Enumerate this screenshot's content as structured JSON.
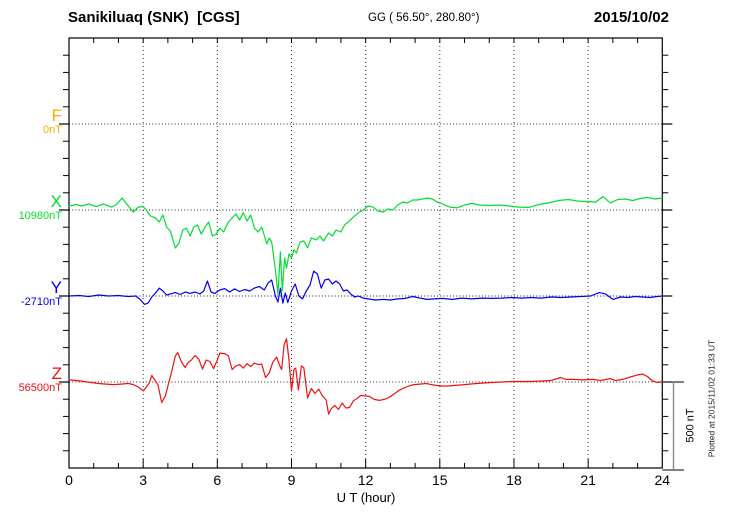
{
  "header": {
    "station": "Sanikiluaq (SNK)  [CGS]",
    "coords": "GG ( 56.50°, 280.80°)",
    "date": "2015/10/02"
  },
  "channels": [
    {
      "label": "F",
      "base_label": "0nT",
      "color": "#ffaa00"
    },
    {
      "label": "X",
      "base_label": "10980nT",
      "color": "#00dd33"
    },
    {
      "label": "Y",
      "base_label": "-2710nT",
      "color": "#0000ee"
    },
    {
      "label": "Z",
      "base_label": "56500nT",
      "color": "#ee1111"
    }
  ],
  "xaxis": {
    "label": "U T (hour)",
    "ticks": [
      0,
      3,
      6,
      9,
      12,
      15,
      18,
      21,
      24
    ]
  },
  "scale_bar": {
    "label": "500 nT"
  },
  "footer_note": "Plotted at 2015/11/02 01:33 UT",
  "chart_data": {
    "type": "line",
    "title": "Sanikiluaq (SNK) [CGS] magnetogram 2015/10/02",
    "xlabel": "U T (hour)",
    "xlim": [
      0,
      24
    ],
    "x_gridlines_every_hours": 3,
    "amplitude_scale": "500 nT per channel division",
    "grid": "dotted",
    "series": [
      {
        "name": "F",
        "base_nT": 0,
        "color": "#ffaa00",
        "note": "no data plotted - dotted baseline only",
        "hours": [],
        "values_nT": []
      },
      {
        "name": "X",
        "base_nT": 10980,
        "color": "#00dd33",
        "hours": [
          0,
          0.3,
          0.5,
          0.8,
          1.1,
          1.4,
          1.7,
          1.9,
          2.15,
          2.4,
          2.6,
          2.8,
          3.0,
          3.15,
          3.3,
          3.5,
          3.65,
          3.8,
          3.95,
          4.1,
          4.3,
          4.45,
          4.6,
          4.75,
          4.9,
          5.05,
          5.2,
          5.35,
          5.5,
          5.65,
          5.8,
          5.95,
          6.1,
          6.25,
          6.45,
          6.6,
          6.75,
          6.9,
          7.05,
          7.2,
          7.35,
          7.5,
          7.65,
          7.8,
          8.0,
          8.1,
          8.2,
          8.35,
          8.45,
          8.55,
          8.63,
          8.72,
          8.8,
          8.9,
          9.0,
          9.1,
          9.2,
          9.35,
          9.5,
          9.65,
          9.8,
          10.0,
          10.15,
          10.3,
          10.5,
          10.65,
          10.8,
          11.0,
          11.15,
          11.3,
          11.5,
          11.7,
          11.9,
          12.1,
          12.3,
          12.5,
          12.7,
          12.9,
          13.1,
          13.3,
          13.5,
          13.7,
          13.9,
          14.1,
          14.3,
          14.5,
          14.7,
          14.9,
          15.1,
          15.4,
          15.7,
          16.0,
          16.3,
          16.6,
          17.0,
          17.4,
          17.8,
          18.2,
          18.6,
          19.0,
          19.4,
          19.8,
          20.2,
          20.6,
          21.0,
          21.3,
          21.6,
          21.9,
          22.2,
          22.5,
          22.8,
          23.1,
          23.4,
          23.7,
          24.0
        ],
        "values_nT": [
          11003,
          11012,
          11003,
          11015,
          11000,
          11015,
          10997,
          11009,
          11050,
          11003,
          10968,
          10997,
          11000,
          10974,
          10945,
          10934,
          10910,
          10951,
          10881,
          10858,
          10759,
          10788,
          10864,
          10875,
          10829,
          10881,
          10893,
          10840,
          10881,
          10910,
          10829,
          10840,
          10875,
          10852,
          10910,
          10934,
          10957,
          10922,
          10965,
          10916,
          10951,
          10875,
          10852,
          10881,
          10783,
          10817,
          10794,
          10632,
          10493,
          10736,
          10510,
          10702,
          10643,
          10725,
          10702,
          10748,
          10730,
          10794,
          10800,
          10760,
          10818,
          10806,
          10829,
          10800,
          10847,
          10829,
          10864,
          10852,
          10893,
          10910,
          10939,
          10963,
          10980,
          11003,
          10997,
          10974,
          10968,
          10986,
          10980,
          11009,
          11026,
          11021,
          11038,
          11038,
          11044,
          11050,
          11044,
          11026,
          11015,
          10997,
          10992,
          11009,
          11018,
          11009,
          11006,
          11009,
          11003,
          10997,
          10995,
          11012,
          11021,
          11035,
          11041,
          11032,
          11029,
          11026,
          11058,
          11021,
          11041,
          11044,
          11035,
          11047,
          11053,
          11044,
          11050
        ]
      },
      {
        "name": "Y",
        "base_nT": -2710,
        "color": "#0000ee",
        "hours": [
          0,
          0.4,
          0.8,
          1.2,
          1.6,
          2.0,
          2.4,
          2.7,
          2.9,
          3.05,
          3.2,
          3.35,
          3.5,
          3.65,
          3.8,
          3.95,
          4.1,
          4.3,
          4.5,
          4.7,
          4.9,
          5.1,
          5.3,
          5.45,
          5.6,
          5.75,
          5.9,
          6.1,
          6.3,
          6.5,
          6.7,
          6.9,
          7.1,
          7.3,
          7.5,
          7.7,
          7.9,
          8.05,
          8.2,
          8.35,
          8.45,
          8.55,
          8.65,
          8.75,
          8.85,
          9.0,
          9.15,
          9.3,
          9.45,
          9.6,
          9.75,
          9.9,
          10.05,
          10.2,
          10.35,
          10.5,
          10.65,
          10.8,
          10.95,
          11.1,
          11.25,
          11.4,
          11.55,
          11.7,
          11.9,
          12.1,
          12.4,
          12.7,
          13.0,
          13.3,
          13.6,
          13.9,
          14.2,
          14.5,
          14.8,
          15.1,
          15.5,
          15.9,
          16.3,
          16.7,
          17.1,
          17.5,
          17.9,
          18.3,
          18.7,
          19.1,
          19.5,
          19.9,
          20.3,
          20.7,
          21.1,
          21.45,
          21.7,
          22.0,
          22.3,
          22.6,
          22.9,
          23.2,
          23.5,
          23.8,
          24.0
        ],
        "values_nT": [
          -2710,
          -2707,
          -2713,
          -2704,
          -2710,
          -2707,
          -2713,
          -2710,
          -2733,
          -2759,
          -2751,
          -2716,
          -2693,
          -2664,
          -2681,
          -2704,
          -2698,
          -2690,
          -2701,
          -2687,
          -2695,
          -2687,
          -2698,
          -2681,
          -2623,
          -2687,
          -2695,
          -2675,
          -2667,
          -2687,
          -2669,
          -2684,
          -2672,
          -2681,
          -2664,
          -2655,
          -2675,
          -2635,
          -2617,
          -2710,
          -2745,
          -2664,
          -2751,
          -2693,
          -2748,
          -2681,
          -2640,
          -2710,
          -2727,
          -2681,
          -2646,
          -2565,
          -2582,
          -2664,
          -2617,
          -2611,
          -2640,
          -2623,
          -2640,
          -2681,
          -2675,
          -2698,
          -2716,
          -2710,
          -2722,
          -2727,
          -2733,
          -2730,
          -2733,
          -2727,
          -2724,
          -2713,
          -2722,
          -2730,
          -2727,
          -2724,
          -2730,
          -2722,
          -2727,
          -2722,
          -2724,
          -2722,
          -2719,
          -2722,
          -2719,
          -2722,
          -2716,
          -2719,
          -2716,
          -2713,
          -2710,
          -2690,
          -2698,
          -2730,
          -2716,
          -2719,
          -2713,
          -2716,
          -2719,
          -2713,
          -2710
        ]
      },
      {
        "name": "Z",
        "base_nT": 56500,
        "color": "#ee1111",
        "hours": [
          0,
          0.3,
          0.6,
          0.9,
          1.2,
          1.5,
          1.8,
          2.1,
          2.4,
          2.6,
          2.8,
          3.0,
          3.1,
          3.25,
          3.35,
          3.5,
          3.6,
          3.75,
          3.9,
          4.0,
          4.15,
          4.3,
          4.4,
          4.55,
          4.7,
          4.8,
          4.95,
          5.1,
          5.25,
          5.4,
          5.55,
          5.7,
          5.85,
          6.0,
          6.1,
          6.3,
          6.45,
          6.6,
          6.75,
          6.9,
          7.05,
          7.2,
          7.35,
          7.5,
          7.65,
          7.8,
          7.95,
          8.1,
          8.25,
          8.4,
          8.5,
          8.6,
          8.7,
          8.8,
          8.9,
          9.0,
          9.1,
          9.17,
          9.28,
          9.4,
          9.5,
          9.65,
          9.8,
          9.95,
          10.1,
          10.25,
          10.4,
          10.5,
          10.6,
          10.75,
          10.9,
          11.05,
          11.2,
          11.35,
          11.5,
          11.65,
          11.8,
          11.95,
          12.15,
          12.35,
          12.55,
          12.75,
          12.95,
          13.15,
          13.35,
          13.55,
          13.75,
          13.95,
          14.2,
          14.45,
          14.65,
          14.85,
          15.1,
          15.35,
          15.6,
          15.9,
          16.2,
          16.5,
          16.8,
          17.1,
          17.5,
          17.9,
          18.3,
          18.7,
          19.1,
          19.5,
          19.9,
          20.1,
          20.4,
          20.8,
          21.2,
          21.5,
          21.9,
          22.1,
          22.4,
          22.7,
          23.0,
          23.2,
          23.4,
          23.6,
          23.8,
          24.0
        ],
        "values_nT": [
          56512,
          56509,
          56503,
          56497,
          56491,
          56488,
          56485,
          56488,
          56491,
          56485,
          56471,
          56448,
          56465,
          56494,
          56538,
          56506,
          56483,
          56381,
          56419,
          56477,
          56558,
          56651,
          56671,
          56616,
          56584,
          56610,
          56628,
          56654,
          56633,
          56575,
          56628,
          56619,
          56578,
          56628,
          56668,
          56665,
          56651,
          56572,
          56593,
          56601,
          56581,
          56607,
          56590,
          56610,
          56601,
          56604,
          56526,
          56552,
          56616,
          56645,
          56604,
          56572,
          56715,
          56752,
          56628,
          56448,
          56575,
          56581,
          56454,
          56593,
          56584,
          56407,
          56462,
          56433,
          56459,
          56419,
          56396,
          56314,
          56343,
          56364,
          56340,
          56378,
          56349,
          56352,
          56390,
          56404,
          56422,
          56419,
          56416,
          56399,
          56393,
          56399,
          56410,
          56430,
          56451,
          56465,
          56477,
          56485,
          56488,
          56491,
          56485,
          56480,
          56477,
          56477,
          56480,
          56483,
          56488,
          56491,
          56494,
          56497,
          56500,
          56503,
          56503,
          56503,
          56506,
          56509,
          56526,
          56515,
          56515,
          56512,
          56515,
          56509,
          56520,
          56509,
          56515,
          56529,
          56541,
          56546,
          56532,
          56506,
          56497,
          56503
        ]
      }
    ]
  }
}
